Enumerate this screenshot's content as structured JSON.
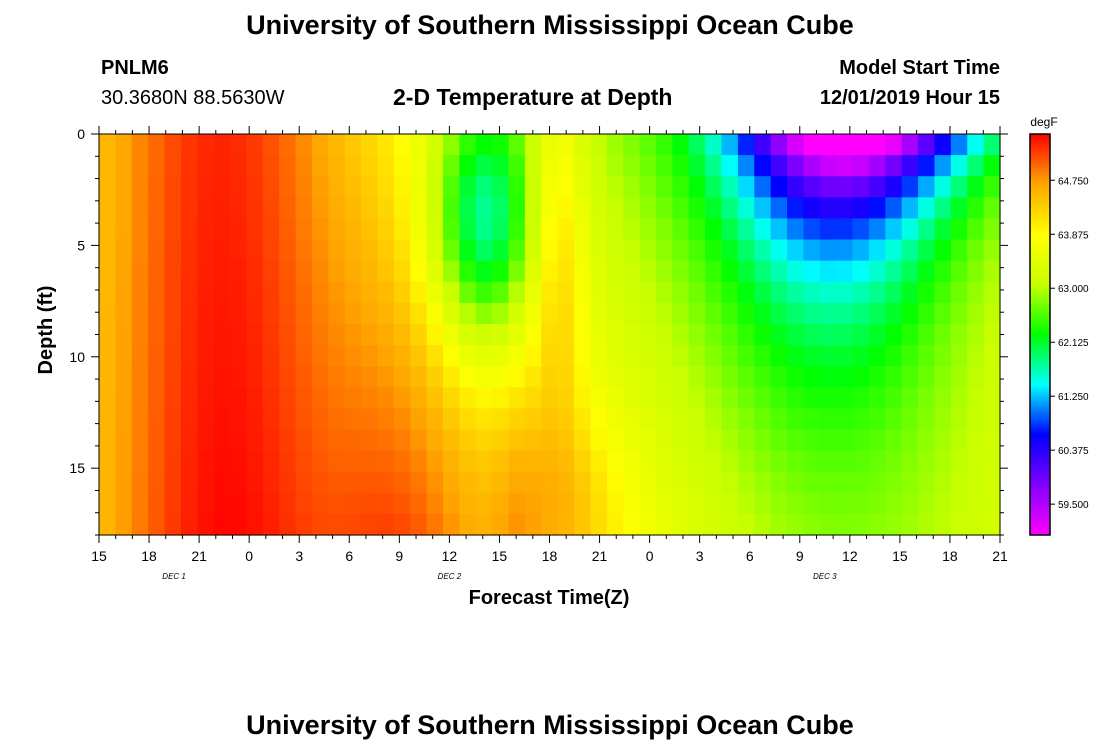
{
  "header": {
    "title_top": "University of Southern Mississippi Ocean Cube",
    "title_bottom": "University of Southern Mississippi Ocean Cube",
    "station_id": "PNLM6",
    "station_coords": "30.3680N 88.5630W",
    "plot_title": "2-D Temperature at Depth",
    "model_start_label": "Model Start Time",
    "model_start_value": "12/01/2019 Hour 15"
  },
  "colors": {
    "palette": [
      "#ff00ff",
      "#8000ff",
      "#0000ff",
      "#00ffff",
      "#00ff00",
      "#c8ff00",
      "#ffff00",
      "#ffa500",
      "#ff0000"
    ]
  },
  "chart_data": {
    "type": "heatmap",
    "title": "2-D Temperature at Depth",
    "xlabel": "Forecast Time(Z)",
    "ylabel": "Depth (ft)",
    "colorbar_unit": "degF",
    "colorbar_ticks": [
      "59.500",
      "60.375",
      "61.250",
      "62.125",
      "63.000",
      "63.875",
      "64.750"
    ],
    "colorbar_range": [
      59.0,
      65.5
    ],
    "x_hours_range": [
      0,
      54
    ],
    "ylim": [
      0,
      18
    ],
    "x_tick_labels": [
      "15",
      "18",
      "21",
      "0",
      "3",
      "6",
      "9",
      "12",
      "15",
      "18",
      "21",
      "0",
      "3",
      "6",
      "9",
      "12",
      "15",
      "18",
      "21"
    ],
    "y_tick_labels": [
      "0",
      "5",
      "10",
      "15"
    ],
    "y_tick_values": [
      0,
      5,
      10,
      15
    ],
    "date_labels": [
      {
        "text": "DEC 1",
        "hour": 4.5
      },
      {
        "text": "DEC 2",
        "hour": 21
      },
      {
        "text": "DEC 3",
        "hour": 43.5
      }
    ],
    "grid": {
      "nx": 55,
      "ny": 19
    },
    "note": "Temperature field (degF) estimated from image: warm 64.5-65.3 over Dec 1 hours 15-21Z, cooling at surface to ~60 by Dec 3 15Z; bottom stays warm (~65) near Dec 2 15-21Z."
  }
}
